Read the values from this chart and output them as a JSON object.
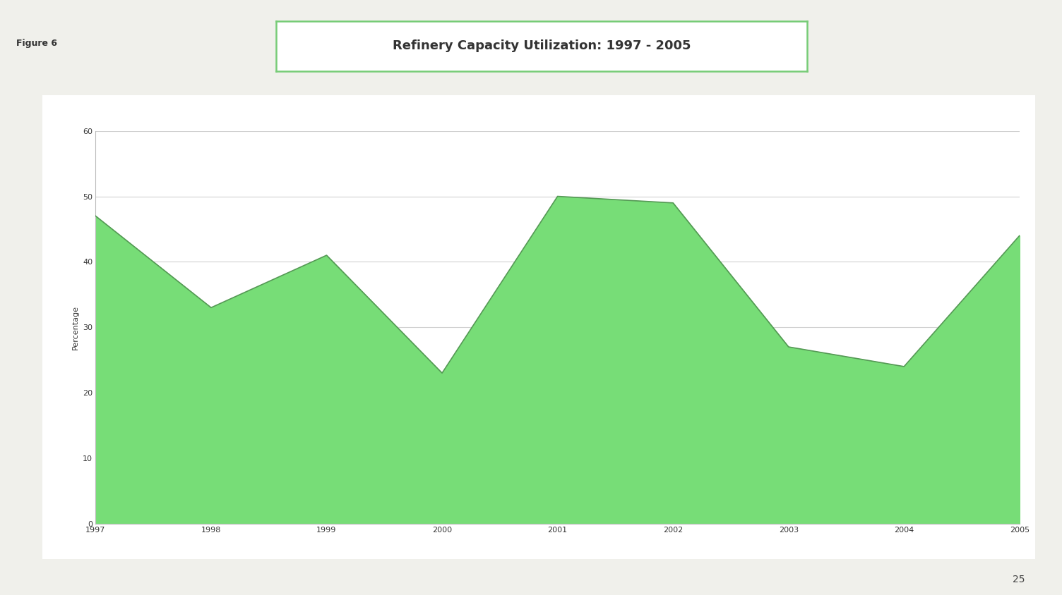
{
  "title": "Refinery Capacity Utilization: 1997 - 2005",
  "figure_label": "Figure 6",
  "page_number": "25",
  "ylabel": "Percentage",
  "years": [
    1997,
    1998,
    1999,
    2000,
    2001,
    2002,
    2003,
    2004,
    2005
  ],
  "values": [
    47,
    33,
    41,
    23,
    50,
    49,
    27,
    24,
    44
  ],
  "ylim": [
    0,
    60
  ],
  "yticks": [
    0,
    10,
    20,
    30,
    40,
    50,
    60
  ],
  "fill_color": "#77dd77",
  "line_color": "#559955",
  "bg_color": "#f0f0eb",
  "chart_bg": "#ffffff",
  "title_box_border": "#77cc77",
  "outer_box_border": "#77cc77",
  "grid_color": "#d0d0d0",
  "title_fontsize": 13,
  "label_fontsize": 8,
  "tick_fontsize": 8,
  "figure_label_fontsize": 9,
  "page_fontsize": 10
}
